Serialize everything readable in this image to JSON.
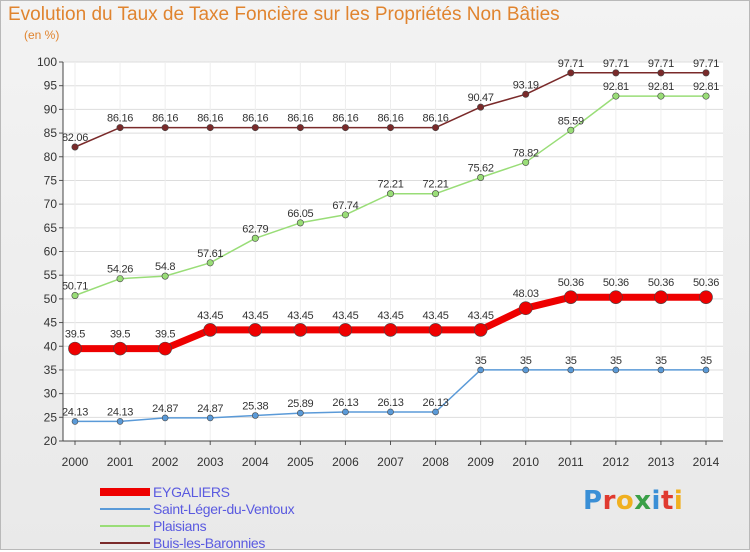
{
  "header": {
    "title": "Evolution du Taux de Taxe Foncière sur les Propriétés Non Bâties",
    "subtitle": "(en %)"
  },
  "brand": {
    "name": "Proxiti",
    "letter_colors": [
      "#3a8fd6",
      "#e03a2f",
      "#f0b020",
      "#3aa048",
      "#3a8fd6",
      "#e03a2f",
      "#f0b020"
    ]
  },
  "chart_data": {
    "type": "line",
    "title": "Evolution du Taux de Taxe Foncière sur les Propriétés Non Bâties",
    "ylabel": "(en %)",
    "xlabel": "",
    "ylim": [
      20,
      100
    ],
    "yticks": [
      20,
      25,
      30,
      35,
      40,
      45,
      50,
      55,
      60,
      65,
      70,
      75,
      80,
      85,
      90,
      95,
      100
    ],
    "grid": true,
    "legend_position": "bottom-left",
    "x": [
      "2000",
      "2001",
      "2002",
      "2003",
      "2004",
      "2005",
      "2006",
      "2007",
      "2008",
      "2009",
      "2010",
      "2011",
      "2012",
      "2013",
      "2014"
    ],
    "series": [
      {
        "name": "EYGALIERS",
        "color": "#ee0000",
        "values": [
          39.5,
          39.5,
          39.5,
          43.45,
          43.45,
          43.45,
          43.45,
          43.45,
          43.45,
          43.45,
          48.03,
          50.36,
          50.36,
          50.36,
          50.36
        ],
        "labels": [
          "39.5",
          "39.5",
          "39.5",
          "43.45",
          "43.45",
          "43.45",
          "43.45",
          "43.45",
          "43.45",
          "43.45",
          "48.03",
          "50.36",
          "50.36",
          "50.36",
          "50.36"
        ]
      },
      {
        "name": "Saint-Léger-du-Ventoux",
        "color": "#5a9ad8",
        "values": [
          24.13,
          24.13,
          24.87,
          24.87,
          25.38,
          25.89,
          26.13,
          26.13,
          26.13,
          35,
          35,
          35,
          35,
          35,
          35
        ],
        "labels": [
          "24.13",
          "24.13",
          "24.87",
          "24.87",
          "25.38",
          "25.89",
          "26.13",
          "26.13",
          "26.13",
          "35",
          "35",
          "35",
          "35",
          "35",
          "35"
        ]
      },
      {
        "name": "Plaisians",
        "color": "#99dd77",
        "values": [
          50.71,
          54.26,
          54.8,
          57.61,
          62.79,
          66.05,
          67.74,
          72.21,
          72.21,
          75.62,
          78.82,
          85.59,
          92.81,
          92.81,
          92.81
        ],
        "labels": [
          "50.71",
          "54.26",
          "54.8",
          "57.61",
          "62.79",
          "66.05",
          "67.74",
          "72.21",
          "72.21",
          "75.62",
          "78.82",
          "85.59",
          "92.81",
          "92.81",
          "92.81"
        ]
      },
      {
        "name": "Buis-les-Baronnies",
        "color": "#7a2a2a",
        "values": [
          82.06,
          86.16,
          86.16,
          86.16,
          86.16,
          86.16,
          86.16,
          86.16,
          86.16,
          90.47,
          93.19,
          97.71,
          97.71,
          97.71,
          97.71
        ],
        "labels": [
          "82.06",
          "86.16",
          "86.16",
          "86.16",
          "86.16",
          "86.16",
          "86.16",
          "86.16",
          "86.16",
          "90.47",
          "93.19",
          "97.71",
          "97.71",
          "97.71",
          "97.71"
        ]
      }
    ]
  }
}
